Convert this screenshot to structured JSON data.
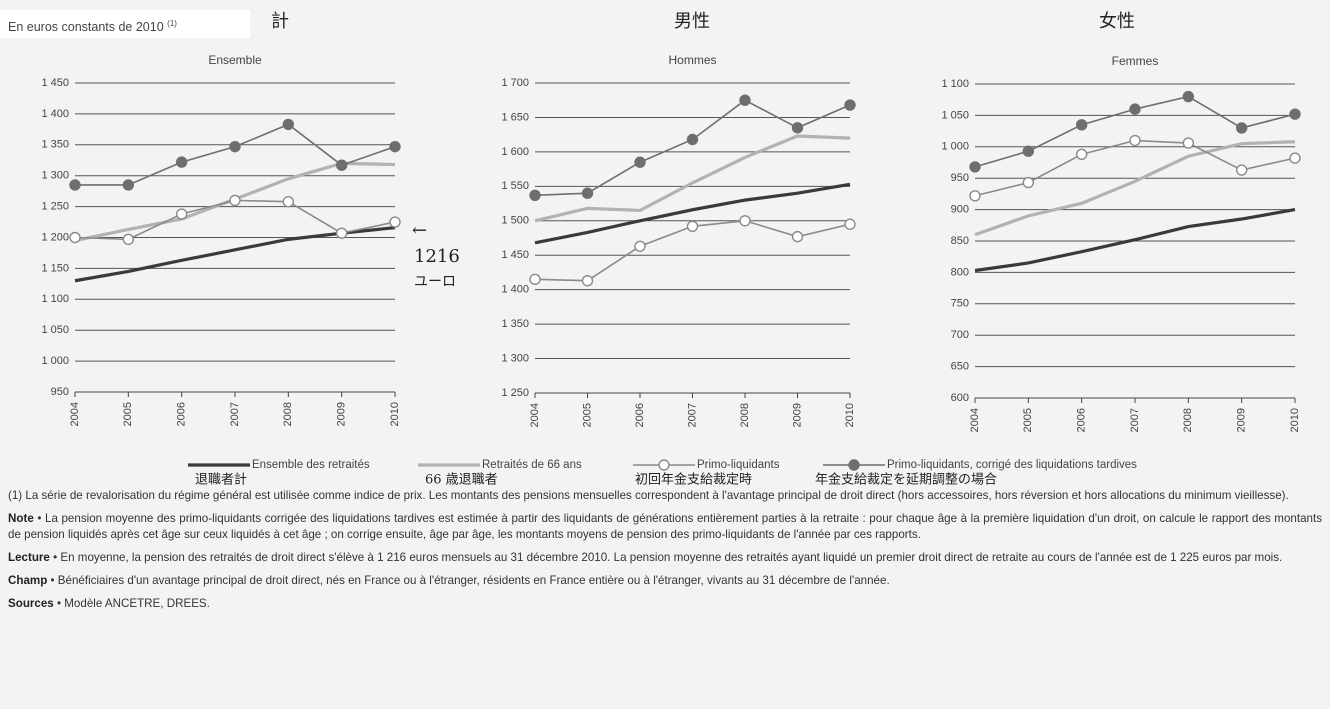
{
  "header": {
    "label": "En euros constants de 2010",
    "sup": "(1)"
  },
  "panel_titles_ja": [
    "計",
    "男性",
    "女性"
  ],
  "annotation": {
    "arrow": "←",
    "value": "1216",
    "unit": "ユーロ"
  },
  "legend_ja": [
    "退職者計",
    "66 歳退職者",
    "初回年金支給裁定時",
    "年金支給裁定を延期調整の場合"
  ],
  "chart_data": [
    {
      "type": "line",
      "title": "Ensemble",
      "categories": [
        "2004",
        "2005",
        "2006",
        "2007",
        "2008",
        "2009",
        "2010"
      ],
      "ylim": [
        950,
        1450
      ],
      "yticks": [
        950,
        {
          "value": 1000,
          "label": "1 000"
        },
        {
          "value": 1050,
          "label": "1 050"
        },
        {
          "value": 1100,
          "label": "1 100"
        },
        {
          "value": 1150,
          "label": "1 150"
        },
        {
          "value": 1200,
          "label": "1 200"
        },
        {
          "value": 1250,
          "label": "1 250"
        },
        {
          "value": 1300,
          "label": "1 300"
        },
        {
          "value": 1350,
          "label": "1 350"
        },
        {
          "value": 1400,
          "label": "1 400"
        },
        {
          "value": 1450,
          "label": "1 450"
        }
      ],
      "grid": true,
      "series": [
        {
          "name": "Ensemble des retraités",
          "color": "#3a3a3a",
          "marker": "none",
          "values": [
            1130,
            1145,
            1163,
            1180,
            1197,
            1207,
            1216
          ]
        },
        {
          "name": "Retraités de 66 ans",
          "color": "#b2b2b2",
          "marker": "none",
          "values": [
            1195,
            1213,
            1230,
            1262,
            1295,
            1320,
            1318
          ]
        },
        {
          "name": "Primo-liquidants",
          "color": "#8a8a8a",
          "marker": "open",
          "values": [
            1200,
            1197,
            1238,
            1260,
            1258,
            1207,
            1225
          ]
        },
        {
          "name": "Primo-liquidants, corrigé des liquidations tardives",
          "color": "#6e6e6e",
          "marker": "filled",
          "values": [
            1285,
            1285,
            1322,
            1347,
            1383,
            1317,
            1347
          ]
        }
      ]
    },
    {
      "type": "line",
      "title": "Hommes",
      "categories": [
        "2004",
        "2005",
        "2006",
        "2007",
        "2008",
        "2009",
        "2010"
      ],
      "ylim": [
        1250,
        1700
      ],
      "yticks": [
        {
          "value": 1250,
          "label": "1 250"
        },
        {
          "value": 1300,
          "label": "1 300"
        },
        {
          "value": 1350,
          "label": "1 350"
        },
        {
          "value": 1400,
          "label": "1 400"
        },
        {
          "value": 1450,
          "label": "1 450"
        },
        {
          "value": 1500,
          "label": "1 500"
        },
        {
          "value": 1550,
          "label": "1 550"
        },
        {
          "value": 1600,
          "label": "1 600"
        },
        {
          "value": 1650,
          "label": "1 650"
        },
        {
          "value": 1700,
          "label": "1 700"
        }
      ],
      "grid": true,
      "series": [
        {
          "name": "Ensemble des retraités",
          "color": "#3a3a3a",
          "marker": "none",
          "values": [
            1468,
            1483,
            1500,
            1516,
            1530,
            1540,
            1553
          ]
        },
        {
          "name": "Retraités de 66 ans",
          "color": "#b2b2b2",
          "marker": "none",
          "values": [
            1500,
            1518,
            1515,
            1555,
            1592,
            1623,
            1620
          ]
        },
        {
          "name": "Primo-liquidants",
          "color": "#8a8a8a",
          "marker": "open",
          "values": [
            1415,
            1413,
            1463,
            1492,
            1500,
            1477,
            1495
          ]
        },
        {
          "name": "Primo-liquidants, corrigé des liquidations tardives",
          "color": "#6e6e6e",
          "marker": "filled",
          "values": [
            1537,
            1540,
            1585,
            1618,
            1675,
            1635,
            1668
          ]
        }
      ]
    },
    {
      "type": "line",
      "title": "Femmes",
      "categories": [
        "2004",
        "2005",
        "2006",
        "2007",
        "2008",
        "2009",
        "2010"
      ],
      "ylim": [
        600,
        1100
      ],
      "yticks": [
        600,
        650,
        700,
        750,
        800,
        850,
        900,
        950,
        {
          "value": 1000,
          "label": "1 000"
        },
        {
          "value": 1050,
          "label": "1 050"
        },
        {
          "value": 1100,
          "label": "1 100"
        }
      ],
      "grid": true,
      "series": [
        {
          "name": "Ensemble des retraités",
          "color": "#3a3a3a",
          "marker": "none",
          "values": [
            803,
            815,
            833,
            852,
            873,
            885,
            900
          ]
        },
        {
          "name": "Retraités de 66 ans",
          "color": "#b2b2b2",
          "marker": "none",
          "values": [
            860,
            890,
            910,
            945,
            985,
            1005,
            1008
          ]
        },
        {
          "name": "Primo-liquidants",
          "color": "#8a8a8a",
          "marker": "open",
          "values": [
            922,
            943,
            988,
            1010,
            1006,
            963,
            982
          ]
        },
        {
          "name": "Primo-liquidants, corrigé des liquidations tardives",
          "color": "#6e6e6e",
          "marker": "filled",
          "values": [
            968,
            993,
            1035,
            1060,
            1080,
            1030,
            1052
          ]
        }
      ]
    }
  ],
  "notes": [
    {
      "text": "(1) La série de revalorisation du régime général est utilisée comme indice de prix. Les montants des pensions mensuelles correspondent à l'avantage principal de droit direct (hors accessoires, hors réversion et hors allocations du minimum vieillesse)."
    },
    {
      "label": "Note",
      "text": " • La pension moyenne des primo-liquidants corrigée des liquidations tardives est estimée à partir des liquidants de générations entièrement parties à la retraite : pour chaque âge à la première liquidation d'un droit, on calcule le rapport des montants de pension liquidés après cet âge sur ceux liquidés à cet âge ; on corrige ensuite, âge par âge, les montants moyens de pension des primo-liquidants de l'année par ces rapports."
    },
    {
      "label": "Lecture",
      "text": " • En moyenne, la pension des retraités de droit direct s'élève à 1 216 euros mensuels au 31 décembre 2010. La pension moyenne des retraités ayant liquidé un premier droit direct de retraite au cours de l'année est de 1 225 euros par mois."
    },
    {
      "label": "Champ",
      "text": " • Bénéficiaires d'un avantage principal de droit direct, nés en France ou à l'étranger, résidents en France entière ou à l'étranger, vivants au 31 décembre de l'année."
    },
    {
      "label": "Sources",
      "text": " • Modèle ANCETRE, DREES."
    }
  ]
}
